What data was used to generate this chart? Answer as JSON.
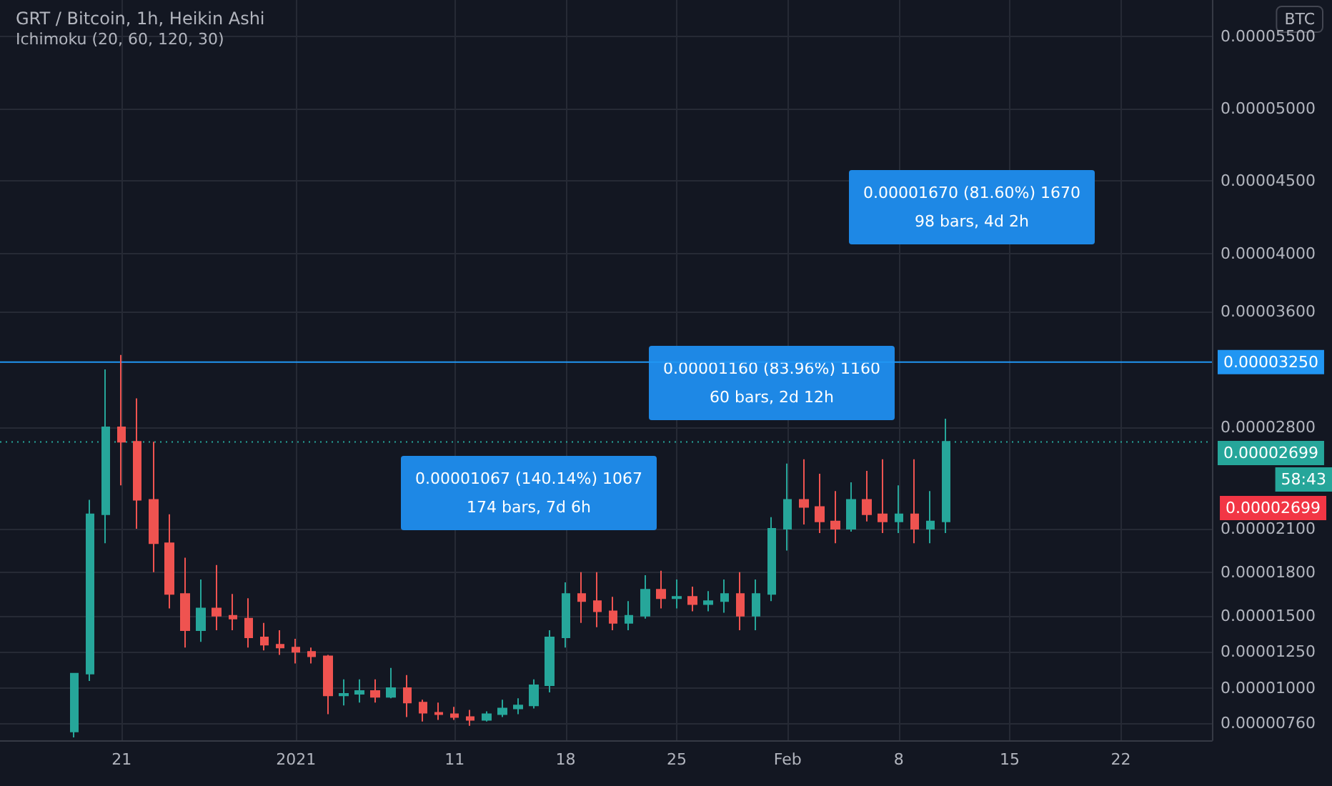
{
  "chart_data": {
    "type": "candlestick",
    "title": "GRT / Bitcoin, 1h, Heikin Ashi",
    "subtitle": "Ichimoku (20, 60, 120, 30)",
    "x": [
      "2020-12-18",
      "2020-12-19",
      "2020-12-20",
      "2020-12-21",
      "2020-12-22",
      "2020-12-23",
      "2020-12-24",
      "2020-12-25",
      "2020-12-26",
      "2020-12-27",
      "2020-12-28",
      "2020-12-29",
      "2020-12-30",
      "2020-12-31",
      "2021-01-01",
      "2021-01-02",
      "2021-01-03",
      "2021-01-04",
      "2021-01-05",
      "2021-01-06",
      "2021-01-07",
      "2021-01-08",
      "2021-01-09",
      "2021-01-10",
      "2021-01-11",
      "2021-01-12",
      "2021-01-13",
      "2021-01-14",
      "2021-01-15",
      "2021-01-16",
      "2021-01-17",
      "2021-01-18",
      "2021-01-19",
      "2021-01-20",
      "2021-01-21",
      "2021-01-22",
      "2021-01-23",
      "2021-01-24",
      "2021-01-25",
      "2021-01-26",
      "2021-01-27",
      "2021-01-28",
      "2021-01-29",
      "2021-01-30",
      "2021-01-31",
      "2021-02-01",
      "2021-02-02",
      "2021-02-03",
      "2021-02-04",
      "2021-02-05",
      "2021-02-06",
      "2021-02-07",
      "2021-02-08",
      "2021-02-09",
      "2021-02-10",
      "2021-02-11"
    ],
    "ohlc": [
      [
        7e-06,
        1.1e-05,
        6.6e-06,
        1.1e-05
      ],
      [
        1.1e-05,
        2.3e-05,
        1.05e-05,
        2.2e-05
      ],
      [
        2.2e-05,
        3.2e-05,
        2e-05,
        2.8e-05
      ],
      [
        2.8e-05,
        3.3e-05,
        2.4e-05,
        2.7e-05
      ],
      [
        2.7e-05,
        3e-05,
        2.1e-05,
        2.3e-05
      ],
      [
        2.3e-05,
        2.7e-05,
        1.8e-05,
        2e-05
      ],
      [
        2e-05,
        2.2e-05,
        1.55e-05,
        1.65e-05
      ],
      [
        1.65e-05,
        1.9e-05,
        1.28e-05,
        1.4e-05
      ],
      [
        1.4e-05,
        1.75e-05,
        1.32e-05,
        1.55e-05
      ],
      [
        1.55e-05,
        1.85e-05,
        1.4e-05,
        1.5e-05
      ],
      [
        1.5e-05,
        1.65e-05,
        1.4e-05,
        1.48e-05
      ],
      [
        1.48e-05,
        1.62e-05,
        1.28e-05,
        1.35e-05
      ],
      [
        1.35e-05,
        1.45e-05,
        1.26e-05,
        1.3e-05
      ],
      [
        1.3e-05,
        1.4e-05,
        1.23e-05,
        1.28e-05
      ],
      [
        1.28e-05,
        1.34e-05,
        1.17e-05,
        1.25e-05
      ],
      [
        1.25e-05,
        1.28e-05,
        1.17e-05,
        1.22e-05
      ],
      [
        1.22e-05,
        1.23e-05,
        8.2e-06,
        9.5e-06
      ],
      [
        9.5e-06,
        1.06e-05,
        8.8e-06,
        9.6e-06
      ],
      [
        9.6e-06,
        1.06e-05,
        9e-06,
        9.8e-06
      ],
      [
        9.8e-06,
        1.06e-05,
        9e-06,
        9.4e-06
      ],
      [
        9.4e-06,
        1.14e-05,
        9.3e-06,
        1e-05
      ],
      [
        1e-05,
        1.09e-05,
        8e-06,
        9e-06
      ],
      [
        9e-06,
        9.2e-06,
        7.7e-06,
        8.3e-06
      ],
      [
        8.3e-06,
        9e-06,
        7.8e-06,
        8.2e-06
      ],
      [
        8.2e-06,
        8.7e-06,
        7.8e-06,
        8e-06
      ],
      [
        8e-06,
        8.5e-06,
        7.4e-06,
        7.8e-06
      ],
      [
        7.8e-06,
        8.4e-06,
        7.7e-06,
        8.2e-06
      ],
      [
        8.2e-06,
        9.2e-06,
        8e-06,
        8.6e-06
      ],
      [
        8.6e-06,
        9.3e-06,
        8.2e-06,
        8.8e-06
      ],
      [
        8.8e-06,
        1.06e-05,
        8.6e-06,
        1.02e-05
      ],
      [
        1.02e-05,
        1.4e-05,
        9.7e-06,
        1.35e-05
      ],
      [
        1.35e-05,
        1.73e-05,
        1.28e-05,
        1.65e-05
      ],
      [
        1.65e-05,
        1.8e-05,
        1.45e-05,
        1.6e-05
      ],
      [
        1.6e-05,
        1.8e-05,
        1.42e-05,
        1.53e-05
      ],
      [
        1.53e-05,
        1.63e-05,
        1.4e-05,
        1.45e-05
      ],
      [
        1.45e-05,
        1.6e-05,
        1.4e-05,
        1.5e-05
      ],
      [
        1.5e-05,
        1.78e-05,
        1.48e-05,
        1.68e-05
      ],
      [
        1.68e-05,
        1.81e-05,
        1.55e-05,
        1.62e-05
      ],
      [
        1.62e-05,
        1.75e-05,
        1.55e-05,
        1.63e-05
      ],
      [
        1.63e-05,
        1.7e-05,
        1.53e-05,
        1.58e-05
      ],
      [
        1.58e-05,
        1.67e-05,
        1.53e-05,
        1.6e-05
      ],
      [
        1.6e-05,
        1.75e-05,
        1.52e-05,
        1.65e-05
      ],
      [
        1.65e-05,
        1.8e-05,
        1.4e-05,
        1.5e-05
      ],
      [
        1.5e-05,
        1.75e-05,
        1.4e-05,
        1.65e-05
      ],
      [
        1.65e-05,
        2.18e-05,
        1.6e-05,
        2.1e-05
      ],
      [
        2.1e-05,
        2.55e-05,
        1.95e-05,
        2.3e-05
      ],
      [
        2.3e-05,
        2.58e-05,
        2.13e-05,
        2.25e-05
      ],
      [
        2.25e-05,
        2.48e-05,
        2.07e-05,
        2.15e-05
      ],
      [
        2.15e-05,
        2.36e-05,
        2e-05,
        2.1e-05
      ],
      [
        2.1e-05,
        2.42e-05,
        2.08e-05,
        2.3e-05
      ],
      [
        2.3e-05,
        2.5e-05,
        2.15e-05,
        2.2e-05
      ],
      [
        2.2e-05,
        2.58e-05,
        2.07e-05,
        2.15e-05
      ],
      [
        2.15e-05,
        2.4e-05,
        2.07e-05,
        2.2e-05
      ],
      [
        2.2e-05,
        2.58e-05,
        2e-05,
        2.1e-05
      ],
      [
        2.1e-05,
        2.36e-05,
        2e-05,
        2.15e-05
      ],
      [
        2.15e-05,
        2.86e-05,
        2.07e-05,
        2.7e-05
      ]
    ],
    "colors": [
      "#26a69a",
      "#26a69a",
      "#26a69a",
      "#ef5350",
      "#ef5350",
      "#ef5350",
      "#ef5350",
      "#ef5350",
      "#26a69a",
      "#ef5350",
      "#ef5350",
      "#ef5350",
      "#ef5350",
      "#ef5350",
      "#ef5350",
      "#ef5350",
      "#ef5350",
      "#26a69a",
      "#26a69a",
      "#ef5350",
      "#26a69a",
      "#ef5350",
      "#ef5350",
      "#ef5350",
      "#ef5350",
      "#ef5350",
      "#26a69a",
      "#26a69a",
      "#26a69a",
      "#26a69a",
      "#26a69a",
      "#26a69a",
      "#ef5350",
      "#ef5350",
      "#ef5350",
      "#26a69a",
      "#26a69a",
      "#ef5350",
      "#26a69a",
      "#ef5350",
      "#26a69a",
      "#26a69a",
      "#ef5350",
      "#26a69a",
      "#26a69a",
      "#26a69a",
      "#ef5350",
      "#ef5350",
      "#ef5350",
      "#26a69a",
      "#ef5350",
      "#ef5350",
      "#26a69a",
      "#ef5350",
      "#26a69a",
      "#26a69a"
    ],
    "xlim": [
      "2020-12-13T08:00",
      "2021-02-27T18:00"
    ],
    "xticks": [
      {
        "value": "2020-12-21",
        "label": "21"
      },
      {
        "value": "2021-01-01",
        "label": "2021"
      },
      {
        "value": "2021-01-11",
        "label": "11"
      },
      {
        "value": "2021-01-18",
        "label": "18"
      },
      {
        "value": "2021-01-25",
        "label": "25"
      },
      {
        "value": "2021-02-01",
        "label": "Feb"
      },
      {
        "value": "2021-02-08",
        "label": "8"
      },
      {
        "value": "2021-02-15",
        "label": "15"
      },
      {
        "value": "2021-02-22",
        "label": "22"
      }
    ],
    "ylim": [
      6.4e-06,
      5.75e-05
    ],
    "yticks": [
      {
        "value": 7.6e-06,
        "label": "0.00000760"
      },
      {
        "value": 1e-05,
        "label": "0.00001000"
      },
      {
        "value": 1.25e-05,
        "label": "0.00001250"
      },
      {
        "value": 1.5e-05,
        "label": "0.00001500"
      },
      {
        "value": 1.8e-05,
        "label": "0.00001800"
      },
      {
        "value": 2.1e-05,
        "label": "0.00002100"
      },
      {
        "value": 2.8e-05,
        "label": "0.00002800"
      },
      {
        "value": 3.6e-05,
        "label": "0.00003600"
      },
      {
        "value": 4e-05,
        "label": "0.00004000"
      },
      {
        "value": 4.5e-05,
        "label": "0.00004500"
      },
      {
        "value": 5e-05,
        "label": "0.00005000"
      },
      {
        "value": 5.5e-05,
        "label": "0.00005500"
      }
    ],
    "grid": true,
    "ref_lines": [
      {
        "axis": "y",
        "value": 3.25e-05,
        "label": "0.00003250",
        "color": "#2196f3",
        "line_style": "solid"
      },
      {
        "axis": "y",
        "value": 2.699e-05,
        "label": "0.00002699",
        "color": "#26a69a",
        "line_style": "dotted"
      }
    ],
    "annotations": [
      "0.00001067 (140.14%) 1067\n174 bars, 7d 6h",
      "0.00001160 (83.96%) 1160\n60 bars, 2d 12h",
      "0.00001670 (81.60%) 1670\n98 bars, 4d 2h",
      "BTC",
      "58:43",
      "0.00002699"
    ]
  }
}
